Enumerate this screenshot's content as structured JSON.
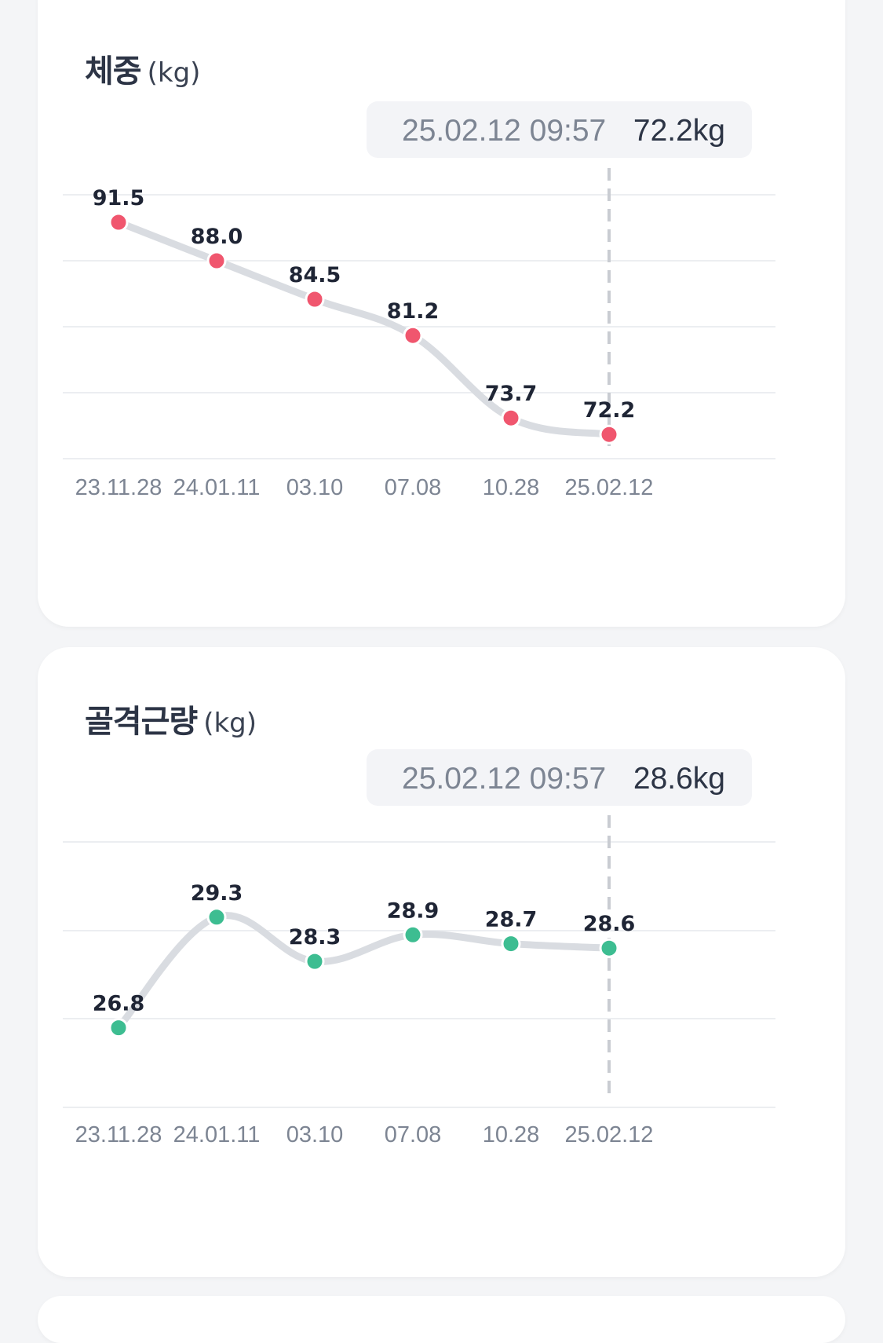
{
  "cards": [
    {
      "id": "weight",
      "title": "체중",
      "unit": "(kg)",
      "tooltip": {
        "date": "25.02.12 09:57",
        "value": "72.2kg"
      },
      "color": "#f0566e"
    },
    {
      "id": "muscle",
      "title": "골격근량",
      "unit": "(kg)",
      "tooltip": {
        "date": "25.02.12 09:57",
        "value": "28.6kg"
      },
      "color": "#3dbd91"
    }
  ],
  "chart_data": [
    {
      "type": "line",
      "title": "체중 (kg)",
      "categories": [
        "23.11.28",
        "24.01.11",
        "03.10",
        "07.08",
        "10.28",
        "25.02.12"
      ],
      "series": [
        {
          "values": [
            91.5,
            88.0,
            84.5,
            81.2,
            73.7,
            72.2
          ]
        }
      ],
      "labels": [
        "91.5",
        "88.0",
        "84.5",
        "81.2",
        "73.7",
        "72.2"
      ],
      "ylim": [
        70,
        94
      ],
      "grid": true,
      "selected_index": 5
    },
    {
      "type": "line",
      "title": "골격근량 (kg)",
      "categories": [
        "23.11.28",
        "24.01.11",
        "03.10",
        "07.08",
        "10.28",
        "25.02.12"
      ],
      "series": [
        {
          "values": [
            26.8,
            29.3,
            28.3,
            28.9,
            28.7,
            28.6
          ]
        }
      ],
      "labels": [
        "26.8",
        "29.3",
        "28.3",
        "28.9",
        "28.7",
        "28.6"
      ],
      "ylim": [
        25,
        31
      ],
      "grid": true,
      "selected_index": 5
    }
  ]
}
